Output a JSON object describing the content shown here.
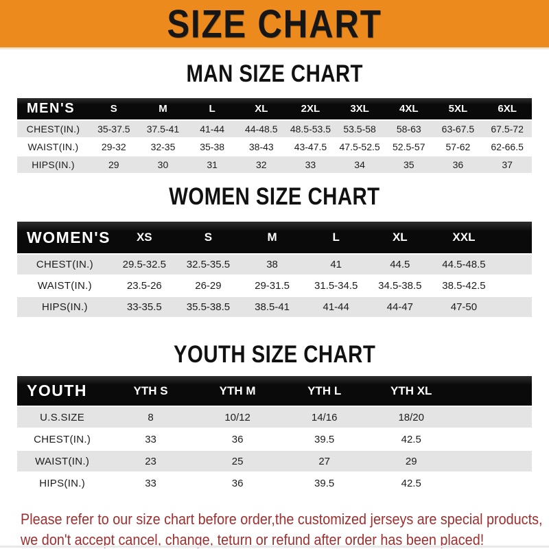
{
  "banner": {
    "title": "SIZE CHART"
  },
  "colors": {
    "banner_orange": "#ec8a1d",
    "header_black": "#141414",
    "row_gray": "#e4e4e4",
    "note_red": "#9e2f2f"
  },
  "chart_data": [
    {
      "type": "table",
      "title": "MAN SIZE CHART",
      "header_label": "MEN'S",
      "columns": [
        "S",
        "M",
        "L",
        "XL",
        "2XL",
        "3XL",
        "4XL",
        "5XL",
        "6XL"
      ],
      "rows": [
        {
          "label": "CHEST(IN.)",
          "values": [
            "35-37.5",
            "37.5-41",
            "41-44",
            "44-48.5",
            "48.5-53.5",
            "53.5-58",
            "58-63",
            "63-67.5",
            "67.5-72"
          ]
        },
        {
          "label": "WAIST(IN.)",
          "values": [
            "29-32",
            "32-35",
            "35-38",
            "38-43",
            "43-47.5",
            "47.5-52.5",
            "52.5-57",
            "57-62",
            "62-66.5"
          ]
        },
        {
          "label": "HIPS(IN.)",
          "values": [
            "29",
            "30",
            "31",
            "32",
            "33",
            "34",
            "35",
            "36",
            "37"
          ]
        }
      ]
    },
    {
      "type": "table",
      "title": "WOMEN SIZE CHART",
      "header_label": "WOMEN'S",
      "columns": [
        "XS",
        "S",
        "M",
        "L",
        "XL",
        "XXL"
      ],
      "rows": [
        {
          "label": "CHEST(IN.)",
          "values": [
            "29.5-32.5",
            "32.5-35.5",
            "38",
            "41",
            "44.5",
            "44.5-48.5"
          ]
        },
        {
          "label": "WAIST(IN.)",
          "values": [
            "23.5-26",
            "26-29",
            "29-31.5",
            "31.5-34.5",
            "34.5-38.5",
            "38.5-42.5"
          ]
        },
        {
          "label": "HIPS(IN.)",
          "values": [
            "33-35.5",
            "35.5-38.5",
            "38.5-41",
            "41-44",
            "44-47",
            "47-50"
          ]
        }
      ]
    },
    {
      "type": "table",
      "title": "YOUTH SIZE CHART",
      "header_label": "YOUTH",
      "columns": [
        "YTH S",
        "YTH M",
        "YTH L",
        "YTH XL"
      ],
      "rows": [
        {
          "label": "U.S.SIZE",
          "values": [
            "8",
            "10/12",
            "14/16",
            "18/20"
          ]
        },
        {
          "label": "CHEST(IN.)",
          "values": [
            "33",
            "36",
            "39.5",
            "42.5"
          ]
        },
        {
          "label": "WAIST(IN.)",
          "values": [
            "23",
            "25",
            "27",
            "29"
          ]
        },
        {
          "label": "HIPS(IN.)",
          "values": [
            "33",
            "36",
            "39.5",
            "42.5"
          ]
        }
      ]
    }
  ],
  "footer": {
    "line1": "Please refer to our size chart before order,the customized jerseys are special products,",
    "line2": "we don't accept cancel, change, teturn or refund after order has been placed!"
  }
}
